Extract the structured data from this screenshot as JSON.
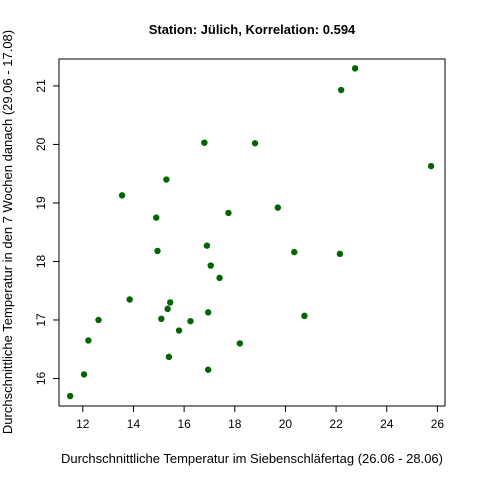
{
  "chart_data": {
    "type": "scatter",
    "title": "Station: Jülich, Korrelation: 0.594",
    "xlabel": "Durchschnittliche Temperatur im Siebenschläfertag (26.06 - 28.06)",
    "ylabel": "Durchschnittliche Temperatur in den 7 Wochen danach (29.06 - 17.08)",
    "xlim": [
      11.06,
      26.3
    ],
    "ylim": [
      15.53,
      21.46
    ],
    "xticks": [
      12,
      14,
      16,
      18,
      20,
      22,
      24,
      26
    ],
    "yticks": [
      16,
      17,
      18,
      19,
      20,
      21
    ],
    "grid": false,
    "point_color": "#006400",
    "x": [
      11.5,
      12.05,
      12.22,
      12.62,
      13.55,
      13.85,
      14.9,
      14.95,
      15.1,
      15.3,
      15.35,
      15.4,
      15.45,
      15.8,
      16.25,
      16.8,
      16.9,
      16.95,
      16.95,
      17.05,
      17.4,
      17.75,
      18.2,
      18.8,
      19.7,
      20.35,
      20.75,
      22.15,
      22.2,
      22.75,
      25.75
    ],
    "y": [
      15.7,
      16.07,
      16.65,
      17.0,
      19.13,
      17.35,
      18.75,
      18.18,
      17.02,
      19.4,
      17.19,
      16.37,
      17.3,
      16.82,
      16.98,
      20.03,
      18.27,
      17.13,
      16.15,
      17.93,
      17.72,
      18.83,
      16.6,
      20.02,
      18.92,
      18.16,
      17.07,
      18.13,
      20.93,
      21.3,
      19.63
    ]
  }
}
